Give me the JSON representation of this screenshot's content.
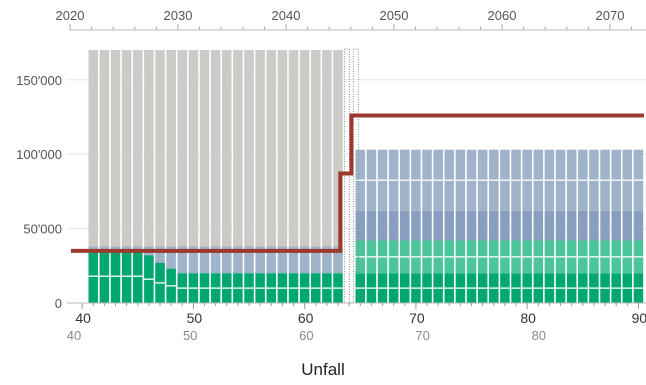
{
  "caption": "Unfall",
  "colors": {
    "gray_bar": "#cdcbc8",
    "blue_light": "#9fb3ca",
    "blue_mid": "#889fc0",
    "green_light": "#4cc49c",
    "green": "#00a770",
    "red_line": "#9b3a2c",
    "grid": "#e6e6e6",
    "axis_text": "#555555",
    "axis_text_light": "#8a8a8a"
  },
  "chart_data": {
    "type": "bar",
    "title": "",
    "xlabel": "Unfall",
    "ylabel": "",
    "ylim": [
      0,
      170000
    ],
    "y_ticks": [
      0,
      50000,
      100000,
      150000
    ],
    "y_tick_labels": [
      "0",
      "50'000",
      "100'000",
      "150'000"
    ],
    "top_axis_years": [
      2020,
      2030,
      2040,
      2050,
      2060,
      2070
    ],
    "x_age_ticks_dark": [
      40,
      50,
      60,
      70,
      80,
      90
    ],
    "x_age_ticks_light": [
      40,
      50,
      60,
      70,
      80,
      90
    ],
    "age_range": [
      39,
      90.5
    ],
    "bars_before_retirement": {
      "ages_from": 41,
      "ages_to": 63,
      "gray_total": 170000,
      "blue_layer_top": 38000,
      "green_layer_top": 20000
    },
    "bars_after_retirement": {
      "ages_from": 65,
      "ages_to": 90,
      "total": 103000,
      "segments": [
        {
          "name": "",
          "from": 0,
          "to": 20000,
          "color": "green"
        },
        {
          "name": "",
          "from": 20000,
          "to": 42000,
          "color": "green_light"
        },
        {
          "name": "",
          "from": 42000,
          "to": 62000,
          "color": "blue_mid"
        },
        {
          "name": "",
          "from": 62000,
          "to": 103000,
          "color": "blue_light"
        }
      ]
    },
    "red_line": {
      "name": "",
      "points": [
        {
          "age": 39,
          "value": 35000
        },
        {
          "age": 63.2,
          "value": 35000
        },
        {
          "age": 63.2,
          "value": 87000
        },
        {
          "age": 64.2,
          "value": 87000
        },
        {
          "age": 64.2,
          "value": 126000
        },
        {
          "age": 90.5,
          "value": 126000
        }
      ]
    }
  }
}
